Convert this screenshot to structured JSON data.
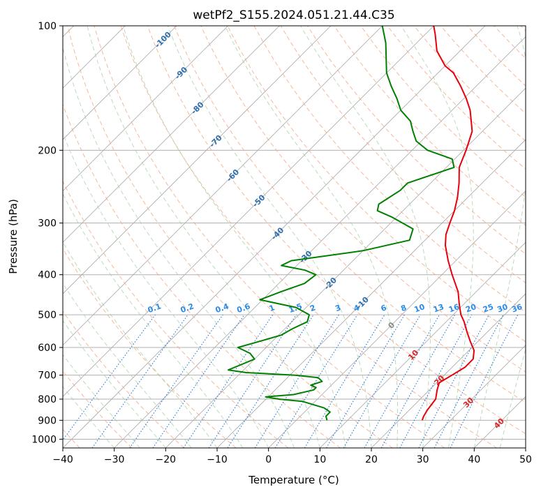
{
  "chart_data": {
    "type": "skew-t",
    "title": "wetPf2_S155.2024.051.21.44.C35",
    "xlabel": "Temperature (°C)",
    "ylabel": "Pressure (hPa)",
    "xlim": [
      -40,
      50
    ],
    "ylim": [
      1050,
      100
    ],
    "y_scale": "log",
    "grid": true,
    "x_ticks": [
      "−40",
      "−30",
      "−20",
      "−10",
      "0",
      "10",
      "20",
      "30",
      "40",
      "50"
    ],
    "x_tick_values": [
      -40,
      -30,
      -20,
      -10,
      0,
      10,
      20,
      30,
      40,
      50
    ],
    "y_ticks": [
      "100",
      "200",
      "300",
      "400",
      "500",
      "600",
      "700",
      "800",
      "900",
      "1000"
    ],
    "y_tick_values": [
      100,
      200,
      300,
      400,
      500,
      600,
      700,
      800,
      900,
      1000
    ],
    "dry_adiabat_labels": [
      "-100",
      "-90",
      "-80",
      "-70",
      "-60",
      "-50",
      "-40",
      "-30",
      "-20",
      "-10",
      "0",
      "10",
      "20",
      "30",
      "40"
    ],
    "mixing_ratio_labels": [
      "0.1",
      "0.2",
      "0.4",
      "0.6",
      "1",
      "1.5",
      "2",
      "3",
      "4",
      "6",
      "8",
      "10",
      "13",
      "16",
      "20",
      "25",
      "30",
      "36"
    ],
    "mixing_ratio_values": [
      0.1,
      0.2,
      0.4,
      0.6,
      1,
      1.5,
      2,
      3,
      4,
      6,
      8,
      10,
      13,
      16,
      20,
      25,
      30,
      36
    ],
    "series": [
      {
        "color": "#e8000b",
        "points": [
          [
            900,
            24.5
          ],
          [
            880,
            24.0
          ],
          [
            850,
            23.5
          ],
          [
            800,
            23.0
          ],
          [
            760,
            21.5
          ],
          [
            730,
            20.5
          ],
          [
            700,
            21.5
          ],
          [
            670,
            22.5
          ],
          [
            640,
            22.5
          ],
          [
            610,
            21.0
          ],
          [
            580,
            18.5
          ],
          [
            550,
            16.0
          ],
          [
            520,
            13.5
          ],
          [
            500,
            11.5
          ],
          [
            470,
            9.0
          ],
          [
            440,
            6.5
          ],
          [
            400,
            2.0
          ],
          [
            370,
            -1.5
          ],
          [
            340,
            -5.0
          ],
          [
            320,
            -7.0
          ],
          [
            300,
            -8.5
          ],
          [
            280,
            -10.0
          ],
          [
            260,
            -12.0
          ],
          [
            240,
            -14.5
          ],
          [
            220,
            -17.5
          ],
          [
            200,
            -19.5
          ],
          [
            180,
            -22.0
          ],
          [
            160,
            -26.5
          ],
          [
            150,
            -29.5
          ],
          [
            140,
            -33.0
          ],
          [
            130,
            -37.0
          ],
          [
            125,
            -40.0
          ],
          [
            115,
            -44.5
          ],
          [
            105,
            -48.0
          ],
          [
            100,
            -50.0
          ]
        ]
      },
      {
        "color": "#008000",
        "points": [
          [
            900,
            6.0
          ],
          [
            880,
            5.0
          ],
          [
            860,
            5.0
          ],
          [
            840,
            3.0
          ],
          [
            810,
            -2.5
          ],
          [
            800,
            -7.5
          ],
          [
            790,
            -10.5
          ],
          [
            780,
            -5.5
          ],
          [
            770,
            -4.0
          ],
          [
            760,
            -2.5
          ],
          [
            750,
            -2.5
          ],
          [
            740,
            -4.0
          ],
          [
            725,
            -2.5
          ],
          [
            710,
            -4.0
          ],
          [
            700,
            -9.0
          ],
          [
            690,
            -19.0
          ],
          [
            680,
            -23.0
          ],
          [
            660,
            -21.5
          ],
          [
            640,
            -20.0
          ],
          [
            620,
            -22.0
          ],
          [
            600,
            -25.5
          ],
          [
            580,
            -22.5
          ],
          [
            560,
            -19.5
          ],
          [
            540,
            -18.5
          ],
          [
            520,
            -17.0
          ],
          [
            500,
            -18.0
          ],
          [
            480,
            -22.0
          ],
          [
            460,
            -30.5
          ],
          [
            440,
            -28.0
          ],
          [
            420,
            -25.0
          ],
          [
            400,
            -24.5
          ],
          [
            390,
            -27.5
          ],
          [
            380,
            -33.0
          ],
          [
            370,
            -32.0
          ],
          [
            350,
            -20.0
          ],
          [
            330,
            -13.0
          ],
          [
            310,
            -14.5
          ],
          [
            290,
            -21.0
          ],
          [
            280,
            -25.0
          ],
          [
            270,
            -26.0
          ],
          [
            250,
            -24.5
          ],
          [
            240,
            -24.5
          ],
          [
            220,
            -18.5
          ],
          [
            210,
            -20.5
          ],
          [
            200,
            -27.0
          ],
          [
            190,
            -31.0
          ],
          [
            180,
            -33.5
          ],
          [
            170,
            -36.0
          ],
          [
            160,
            -40.0
          ],
          [
            150,
            -43.0
          ],
          [
            140,
            -46.5
          ],
          [
            130,
            -50.0
          ],
          [
            110,
            -56.0
          ],
          [
            100,
            -60.0
          ]
        ]
      }
    ]
  }
}
